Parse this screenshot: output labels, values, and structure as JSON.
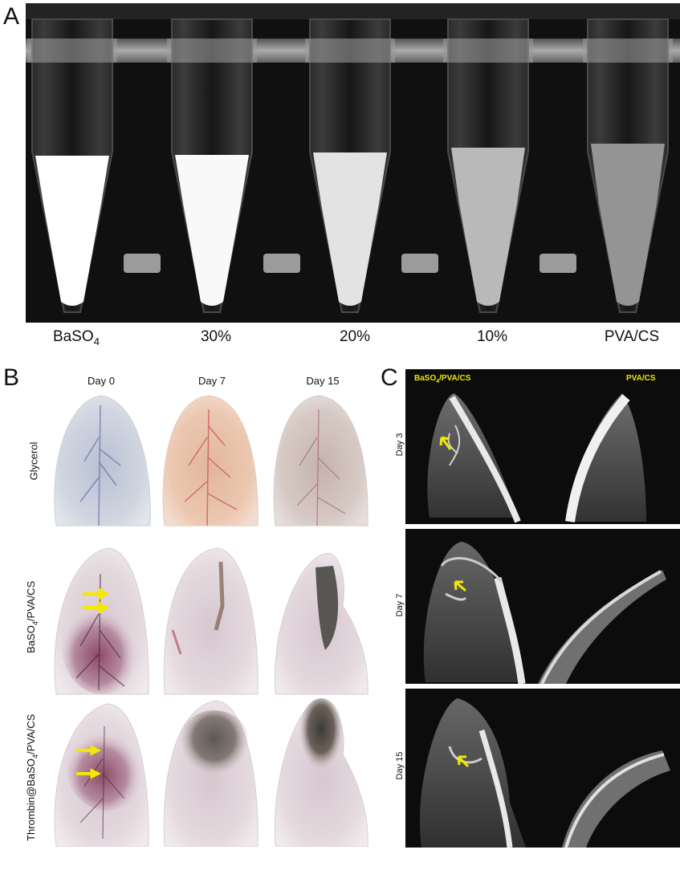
{
  "panel_a": {
    "letter": "A",
    "tubes": [
      {
        "label_main": "BaSO",
        "label_sub": "4",
        "label_rest": "",
        "brightness": 1.0
      },
      {
        "label_main": "30%",
        "label_sub": "",
        "label_rest": "",
        "brightness": 0.97
      },
      {
        "label_main": "20%",
        "label_sub": "",
        "label_rest": "",
        "brightness": 0.85
      },
      {
        "label_main": "10%",
        "label_sub": "",
        "label_rest": "",
        "brightness": 0.62
      },
      {
        "label_main": "PVA/CS",
        "label_sub": "",
        "label_rest": "",
        "brightness": 0.42
      }
    ]
  },
  "panel_b": {
    "letter": "B",
    "columns": [
      "Day 0",
      "Day 7",
      "Day 15"
    ],
    "rows": [
      {
        "label_main": "Glycerol",
        "label_sub": "",
        "label_rest": ""
      },
      {
        "label_main": "BaSO",
        "label_sub": "4",
        "label_rest": "/PVA/CS"
      },
      {
        "label_main": "Thrombin@BaSO",
        "label_sub": "4",
        "label_rest": "/PVA/CS"
      }
    ]
  },
  "panel_c": {
    "letter": "C",
    "left_title_main": "BaSO",
    "left_title_sub": "4",
    "left_title_rest": "/PVA/CS",
    "right_title": "PVA/CS",
    "rows": [
      "Day 3",
      "Day 7",
      "Day 15"
    ]
  },
  "colors": {
    "arrow": "#f5e800",
    "xray_bg": "#0c0c0c",
    "label_yellow": "#f2e600"
  }
}
